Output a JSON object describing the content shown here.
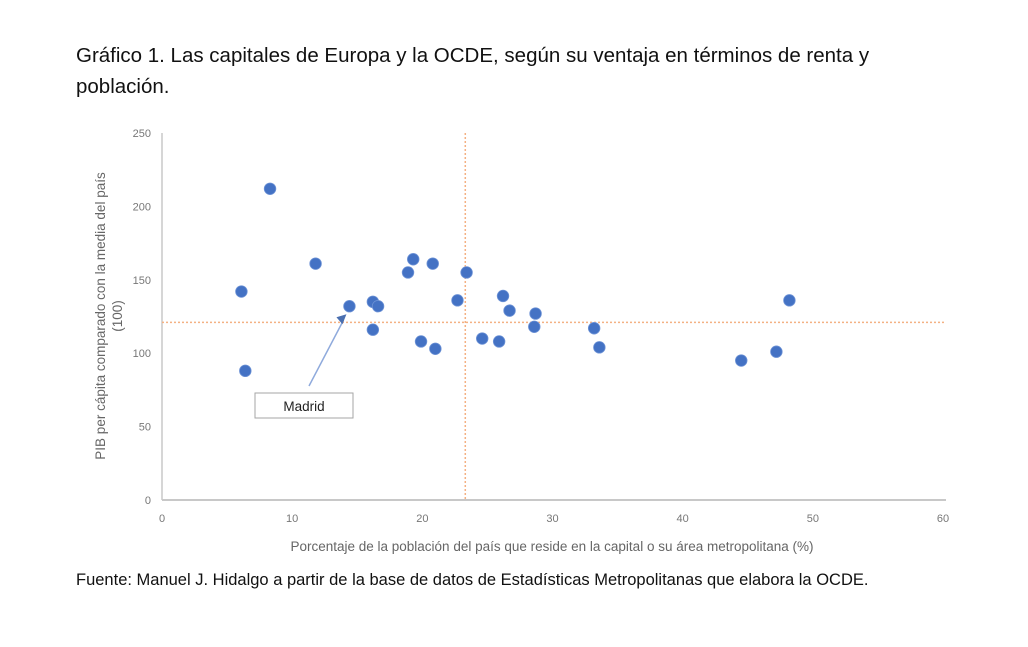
{
  "title": "Gráfico 1. Las capitales de Europa y la OCDE, según su ventaja en términos de renta y población.",
  "source": "Fuente: Manuel J. Hidalgo a partir de la base de datos de Estadísticas Metropolitanas que elabora la OCDE.",
  "chart_data": {
    "type": "scatter",
    "title": "",
    "xlabel": "Porcentaje de la población del país que reside en la capital o su área metropolitana (%)",
    "ylabel": "PIB per cápita comparado con la media del país (100)",
    "xlim": [
      0,
      60
    ],
    "ylim": [
      0,
      250
    ],
    "xticks": [
      0,
      10,
      20,
      30,
      40,
      50,
      60
    ],
    "yticks": [
      0,
      50,
      100,
      150,
      200,
      250
    ],
    "grid": false,
    "marker_color": "#4472C4",
    "reference_line_color": "#F4B183",
    "reference_lines": {
      "x": 23.3,
      "y": 121
    },
    "points": [
      {
        "x": 6.1,
        "y": 142
      },
      {
        "x": 6.4,
        "y": 88
      },
      {
        "x": 8.3,
        "y": 212
      },
      {
        "x": 11.8,
        "y": 161
      },
      {
        "x": 14.4,
        "y": 132
      },
      {
        "x": 16.2,
        "y": 135
      },
      {
        "x": 16.6,
        "y": 132
      },
      {
        "x": 16.2,
        "y": 116
      },
      {
        "x": 18.9,
        "y": 155
      },
      {
        "x": 19.3,
        "y": 164
      },
      {
        "x": 20.8,
        "y": 161
      },
      {
        "x": 19.9,
        "y": 108
      },
      {
        "x": 21.0,
        "y": 103
      },
      {
        "x": 22.7,
        "y": 136
      },
      {
        "x": 23.4,
        "y": 155
      },
      {
        "x": 24.6,
        "y": 110
      },
      {
        "x": 25.9,
        "y": 108
      },
      {
        "x": 26.2,
        "y": 139
      },
      {
        "x": 26.7,
        "y": 129
      },
      {
        "x": 28.7,
        "y": 127
      },
      {
        "x": 28.6,
        "y": 118
      },
      {
        "x": 33.2,
        "y": 117
      },
      {
        "x": 33.6,
        "y": 104
      },
      {
        "x": 44.5,
        "y": 95
      },
      {
        "x": 47.2,
        "y": 101
      },
      {
        "x": 48.2,
        "y": 136
      }
    ],
    "annotations": [
      {
        "text": "Madrid",
        "x": 14.4,
        "y": 132
      }
    ]
  }
}
